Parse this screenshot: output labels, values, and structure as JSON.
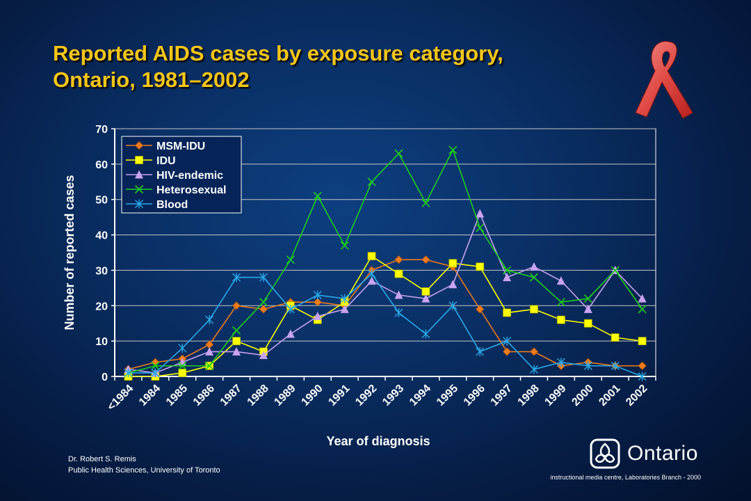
{
  "slide": {
    "title_line1": "Reported AIDS cases by exposure category,",
    "title_line2": "Ontario, 1981–2002",
    "credit_line1": "Dr. Robert S. Remis",
    "credit_line2": "Public Health Sciences, University of Toronto",
    "logo_text": "Ontario",
    "footer": "instructional media centre, Laboratories Branch - 2000",
    "icons": [
      "red-ribbon-icon",
      "ontario-trillium-icon"
    ]
  },
  "chart_data": {
    "type": "line",
    "xlabel": "Year of diagnosis",
    "ylabel": "Number of reported cases",
    "ylim": [
      0,
      70
    ],
    "yticks": [
      0,
      10,
      20,
      30,
      40,
      50,
      60,
      70
    ],
    "grid": true,
    "legend_position": "top-left",
    "categories": [
      "<1984",
      "1984",
      "1985",
      "1986",
      "1987",
      "1988",
      "1989",
      "1990",
      "1991",
      "1992",
      "1993",
      "1994",
      "1995",
      "1996",
      "1997",
      "1998",
      "1999",
      "2000",
      "2001",
      "2002"
    ],
    "series": [
      {
        "name": "MSM-IDU",
        "color": "#f07b1a",
        "marker": "diamond",
        "values": [
          2,
          4,
          5,
          9,
          20,
          19,
          21,
          21,
          20,
          30,
          33,
          33,
          31,
          19,
          7,
          7,
          3,
          4,
          3,
          3
        ]
      },
      {
        "name": "IDU",
        "color": "#ffff00",
        "marker": "square",
        "values": [
          0,
          0,
          1,
          3,
          10,
          7,
          20,
          16,
          21,
          34,
          29,
          24,
          32,
          31,
          18,
          19,
          16,
          15,
          11,
          10
        ]
      },
      {
        "name": "HIV-endemic",
        "color": "#c9a2f0",
        "marker": "triangle",
        "values": [
          2,
          1,
          4,
          7,
          7,
          6,
          12,
          17,
          19,
          27,
          23,
          22,
          26,
          46,
          28,
          31,
          27,
          19,
          30,
          22
        ]
      },
      {
        "name": "Heterosexual",
        "color": "#1fcf1f",
        "marker": "x",
        "values": [
          1,
          3,
          3,
          3,
          13,
          21,
          33,
          51,
          37,
          55,
          63,
          49,
          64,
          42,
          30,
          28,
          21,
          22,
          30,
          19
        ]
      },
      {
        "name": "Blood",
        "color": "#2aaae8",
        "marker": "star",
        "values": [
          1,
          1,
          8,
          16,
          28,
          28,
          19,
          23,
          22,
          29,
          18,
          12,
          20,
          7,
          10,
          2,
          4,
          3,
          3,
          0
        ]
      }
    ]
  }
}
